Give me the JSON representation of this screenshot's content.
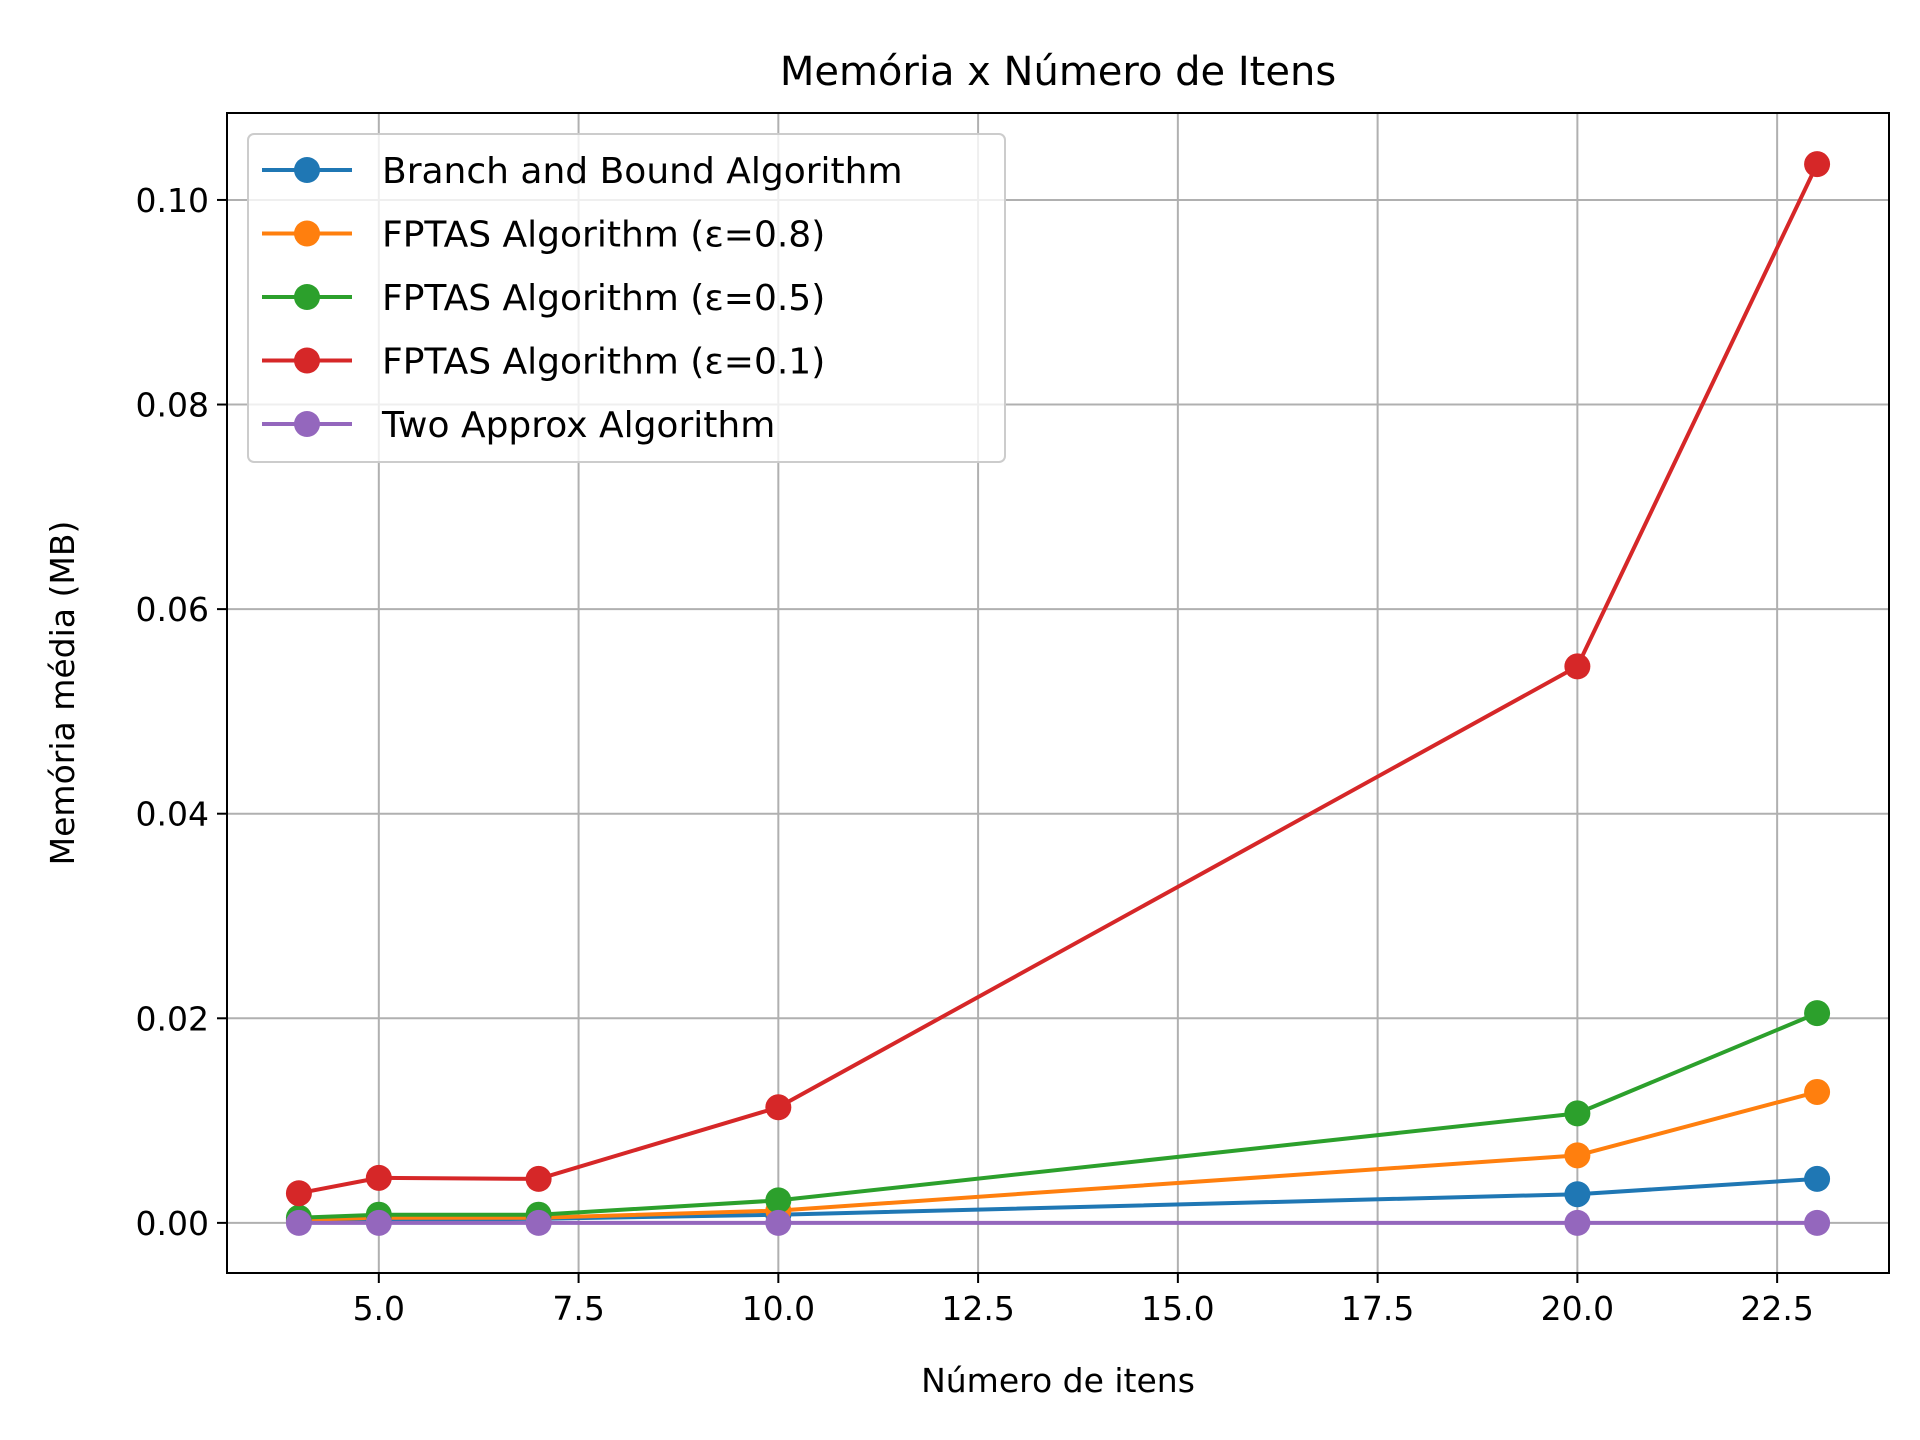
{
  "chart_data": {
    "type": "line",
    "title": "Memória x Número de Itens",
    "xlabel": "Número de itens",
    "ylabel": "Memória média (MB)",
    "xlim": [
      3.1,
      23.9
    ],
    "ylim": [
      -0.0049,
      0.1085
    ],
    "xticks": [
      5.0,
      7.5,
      10.0,
      12.5,
      15.0,
      17.5,
      20.0,
      22.5
    ],
    "xtick_labels": [
      "5.0",
      "7.5",
      "10.0",
      "12.5",
      "15.0",
      "17.5",
      "20.0",
      "22.5"
    ],
    "yticks": [
      0.0,
      0.02,
      0.04,
      0.06,
      0.08,
      0.1
    ],
    "ytick_labels": [
      "0.00",
      "0.02",
      "0.04",
      "0.06",
      "0.08",
      "0.10"
    ],
    "grid": true,
    "legend_position": "top-left",
    "x": [
      4,
      5,
      7,
      10,
      20,
      23
    ],
    "series": [
      {
        "name": "Branch and Bound Algorithm",
        "color": "#1f77b4",
        "values": [
          0.0002,
          0.0003,
          0.0004,
          0.0008,
          0.0028,
          0.0043
        ]
      },
      {
        "name": "FPTAS Algorithm (ε=0.8)",
        "color": "#ff7f0e",
        "values": [
          0.0003,
          0.0005,
          0.0005,
          0.0012,
          0.0066,
          0.0128
        ]
      },
      {
        "name": "FPTAS Algorithm (ε=0.5)",
        "color": "#2ca02c",
        "values": [
          0.0005,
          0.0008,
          0.0008,
          0.0022,
          0.0107,
          0.0205
        ]
      },
      {
        "name": "FPTAS Algorithm (ε=0.1)",
        "color": "#d62728",
        "values": [
          0.0029,
          0.0044,
          0.0043,
          0.0113,
          0.0544,
          0.1035
        ]
      },
      {
        "name": "Two Approx Algorithm",
        "color": "#9467bd",
        "values": [
          0.0,
          0.0,
          0.0,
          0.0,
          0.0,
          0.0
        ]
      }
    ]
  }
}
